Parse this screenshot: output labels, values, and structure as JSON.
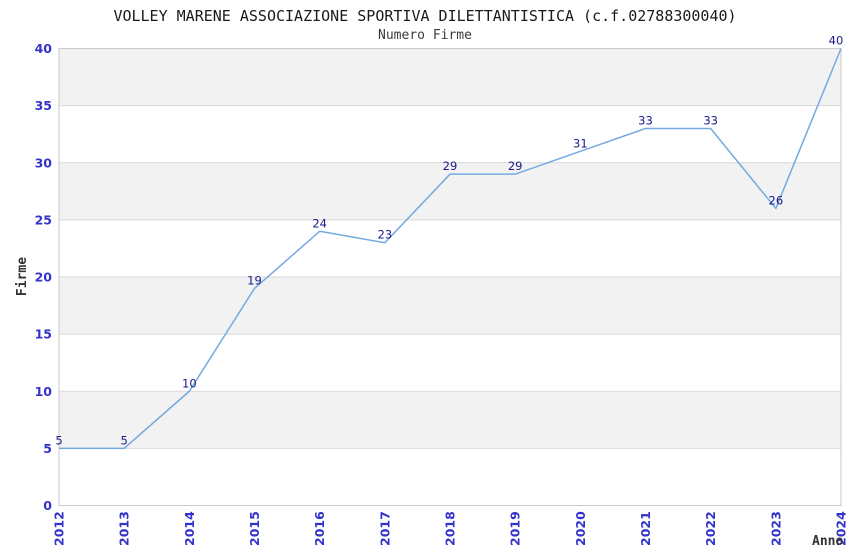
{
  "chart_data": {
    "type": "line",
    "title": "VOLLEY MARENE ASSOCIAZIONE SPORTIVA DILETTANTISTICA (c.f.02788300040)",
    "subtitle": "Numero Firme",
    "xlabel": "Anno",
    "ylabel": "Firme",
    "categories": [
      "2012",
      "2013",
      "2014",
      "2015",
      "2016",
      "2017",
      "2018",
      "2019",
      "2020",
      "2021",
      "2022",
      "2023",
      "2024"
    ],
    "values": [
      5,
      5,
      10,
      19,
      24,
      23,
      29,
      29,
      31,
      33,
      33,
      26,
      40
    ],
    "yticks": [
      0,
      5,
      10,
      15,
      20,
      25,
      30,
      35,
      40
    ],
    "ylim": [
      0,
      40
    ],
    "grid": "horizontal-lines-with-alternating-bands",
    "legend_position": "none",
    "data_labels_shown": true,
    "x_tick_rotation": -90,
    "colors": {
      "line": "#74a9e0",
      "axis_tick_label": "#3333cc",
      "data_label": "#1a1a8c",
      "band": "#f2f2f2",
      "gridline": "#d9d9d9",
      "plot_border": "#c9c9c9",
      "title": "#1a1a1a",
      "subtitle": "#3c3c3c",
      "axis_title": "#333333",
      "background": "#ffffff"
    }
  }
}
